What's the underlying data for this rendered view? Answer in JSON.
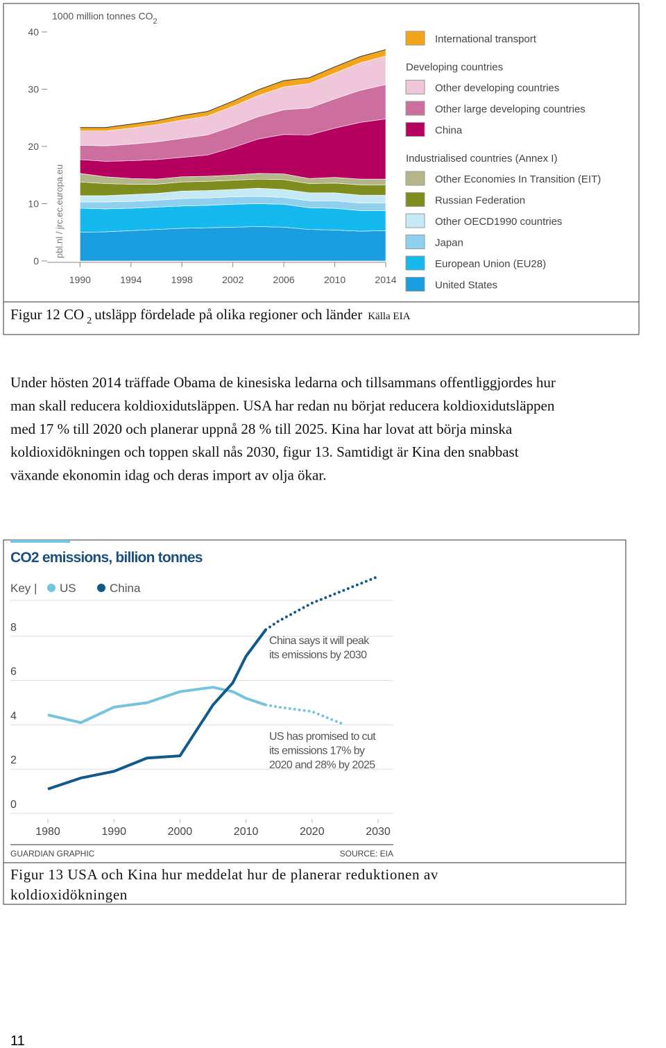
{
  "chart_data": [
    {
      "type": "stacked-area",
      "ylabel": "1000 million tonnes CO",
      "ylabel_sub": "2",
      "watermark": "pbl.nl / jrc.ec.europa.eu",
      "x": [
        1990,
        1992,
        1994,
        1996,
        1998,
        2000,
        2002,
        2004,
        2006,
        2008,
        2010,
        2012,
        2014
      ],
      "xlim": [
        1989,
        2014
      ],
      "xticks": [
        1990,
        1994,
        1998,
        2002,
        2006,
        2010,
        2014
      ],
      "ylim": [
        0,
        40
      ],
      "yticks": [
        0,
        10,
        20,
        30,
        40
      ],
      "series": [
        {
          "name": "International transport",
          "color": "#f2a51a",
          "values": [
            0.6,
            0.6,
            0.7,
            0.7,
            0.8,
            0.8,
            0.9,
            1.0,
            1.1,
            1.0,
            1.1,
            1.1,
            1.1
          ]
        },
        {
          "name": "Other developing countries",
          "legend_heading": "Developing countries",
          "color": "#f0c6da",
          "values": [
            2.5,
            2.6,
            2.8,
            3.0,
            3.2,
            3.3,
            3.5,
            3.7,
            4.0,
            4.3,
            4.5,
            4.8,
            5.0
          ]
        },
        {
          "name": "Other large developing countries",
          "color": "#cc6f9f",
          "values": [
            2.5,
            2.7,
            2.9,
            3.1,
            3.3,
            3.5,
            3.7,
            3.9,
            4.3,
            4.7,
            5.1,
            5.6,
            6.0
          ]
        },
        {
          "name": "China",
          "color": "#b5005f",
          "values": [
            2.4,
            2.7,
            3.1,
            3.4,
            3.4,
            3.7,
            4.8,
            6.0,
            6.9,
            7.6,
            8.6,
            9.9,
            10.5
          ]
        },
        {
          "name": "Other Economies In Transition (EIT)",
          "legend_heading": "Industrialised countries (Annex I)",
          "color": "#b4b68a",
          "values": [
            1.5,
            1.2,
            1.0,
            0.9,
            0.9,
            0.9,
            0.9,
            1.0,
            1.0,
            0.9,
            1.0,
            1.0,
            1.0
          ]
        },
        {
          "name": "Russian Federation",
          "color": "#7f8d1f",
          "values": [
            2.4,
            2.1,
            1.8,
            1.6,
            1.6,
            1.6,
            1.6,
            1.6,
            1.7,
            1.6,
            1.7,
            1.8,
            1.8
          ]
        },
        {
          "name": "Other OECD1990 countries",
          "color": "#c6e9f6",
          "values": [
            1.1,
            1.1,
            1.2,
            1.2,
            1.3,
            1.3,
            1.3,
            1.4,
            1.4,
            1.4,
            1.4,
            1.4,
            1.4
          ]
        },
        {
          "name": "Japan",
          "color": "#8fd0ee",
          "values": [
            1.1,
            1.2,
            1.2,
            1.2,
            1.3,
            1.3,
            1.3,
            1.3,
            1.2,
            1.2,
            1.3,
            1.3,
            1.3
          ]
        },
        {
          "name": "European Union (EU28)",
          "color": "#16b9ee",
          "values": [
            4.2,
            4.0,
            3.9,
            3.9,
            3.9,
            3.9,
            4.0,
            4.0,
            4.0,
            3.8,
            3.8,
            3.6,
            3.5
          ]
        },
        {
          "name": "United States",
          "color": "#1b9ee0",
          "values": [
            5.0,
            5.1,
            5.3,
            5.5,
            5.7,
            5.8,
            5.9,
            6.0,
            5.9,
            5.5,
            5.4,
            5.2,
            5.3
          ]
        }
      ]
    },
    {
      "type": "line",
      "title": "CO2 emissions, billion tonnes",
      "legend_key": "Key |",
      "x": [
        1980,
        1985,
        1990,
        1995,
        2000,
        2005,
        2008,
        2010,
        2013,
        2015,
        2020,
        2025,
        2030
      ],
      "xlim": [
        1980,
        2030
      ],
      "xticks": [
        1980,
        1990,
        2000,
        2010,
        2020,
        2030
      ],
      "ylim": [
        0,
        11
      ],
      "yticks": [
        0,
        2,
        4,
        6,
        8
      ],
      "grid": true,
      "series": [
        {
          "name": "US",
          "color": "#74c4de",
          "values": [
            4.45,
            4.1,
            4.8,
            5.0,
            5.5,
            5.7,
            5.5,
            5.2,
            4.9,
            null,
            null,
            null,
            null
          ],
          "projection": [
            null,
            null,
            null,
            null,
            null,
            null,
            null,
            null,
            4.9,
            4.8,
            4.6,
            4.0,
            null
          ]
        },
        {
          "name": "China",
          "color": "#0f5a8a",
          "values": [
            1.1,
            1.6,
            1.9,
            2.5,
            2.6,
            4.9,
            5.9,
            7.1,
            8.3,
            null,
            null,
            null,
            null
          ],
          "projection": [
            null,
            null,
            null,
            null,
            null,
            null,
            null,
            null,
            8.3,
            8.7,
            9.5,
            10.1,
            10.7
          ]
        }
      ],
      "annotations": [
        [
          "China says it will peak",
          "its emissions by 2030"
        ],
        [
          "US has promised to cut",
          "its emissions 17% by",
          "2020 and 28% by 2025"
        ]
      ],
      "footer_left": "GUARDIAN GRAPHIC",
      "footer_right": "SOURCE: EIA"
    }
  ],
  "document": {
    "caption_1": {
      "text": "Figur 12 CO",
      "sub": "2",
      "rest": "utsläpp fördelade på olika regioner och länder",
      "source": "Källa EIA"
    },
    "paragraph": [
      "Under hösten 2014 träffade Obama de kinesiska ledarna och tillsammans offentliggjordes hur",
      "man skall reducera koldioxidutsläppen. USA har redan nu börjat reducera koldioxidutsläppen",
      "med 17 % till 2020 och planerar uppnå 28 % till 2025.  Kina har lovat att börja minska",
      "koldioxidökningen och toppen skall nås 2030, figur 13. Samtidigt är Kina den snabbast",
      "växande ekonomin idag och deras import av olja ökar."
    ],
    "caption_2": [
      "Figur 13 USA och Kina hur meddelat hur de planerar reduktionen av",
      "koldioxidökningen"
    ],
    "page_number": "11"
  }
}
